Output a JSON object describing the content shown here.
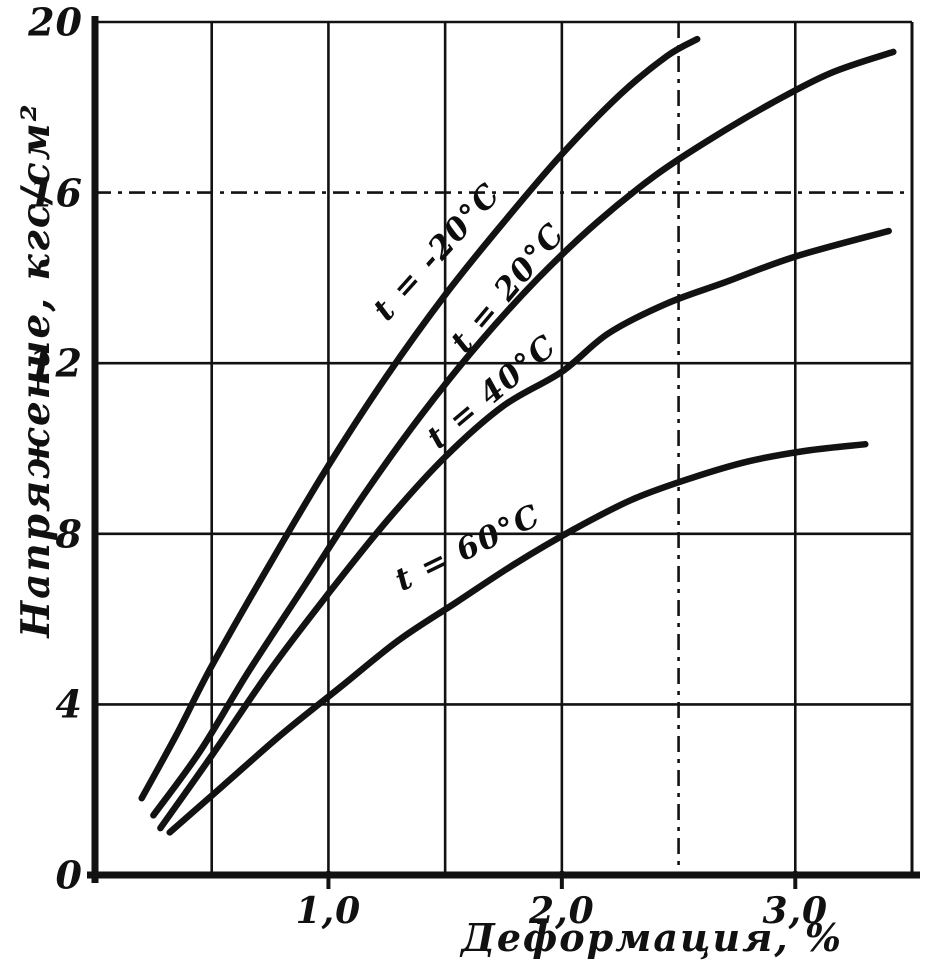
{
  "chart_data": {
    "type": "line",
    "title": "",
    "xlabel": "Деформация, %",
    "ylabel": "Напряжение, кгс/см²",
    "xlim": [
      0,
      3.5
    ],
    "ylim": [
      0,
      20
    ],
    "grid": true,
    "x_gridlines": [
      0.5,
      1.0,
      1.5,
      2.0,
      2.5,
      3.0
    ],
    "y_gridlines": [
      4,
      8,
      12,
      16,
      20
    ],
    "x_ticks": [
      {
        "value": 1.0,
        "label": "1,0"
      },
      {
        "value": 2.0,
        "label": "2,0"
      },
      {
        "value": 3.0,
        "label": "3,0"
      }
    ],
    "y_ticks": [
      {
        "value": 0,
        "label": "0"
      },
      {
        "value": 4,
        "label": "4"
      },
      {
        "value": 8,
        "label": "8"
      },
      {
        "value": 12,
        "label": "12"
      },
      {
        "value": 16,
        "label": "16"
      },
      {
        "value": 20,
        "label": "20"
      }
    ],
    "series": [
      {
        "name": "t = -20°C",
        "points": [
          [
            0.2,
            1.8
          ],
          [
            0.35,
            3.3
          ],
          [
            0.5,
            4.9
          ],
          [
            0.75,
            7.3
          ],
          [
            1.0,
            9.6
          ],
          [
            1.25,
            11.7
          ],
          [
            1.5,
            13.6
          ],
          [
            1.75,
            15.3
          ],
          [
            2.0,
            16.9
          ],
          [
            2.25,
            18.3
          ],
          [
            2.45,
            19.2
          ],
          [
            2.58,
            19.6
          ]
        ]
      },
      {
        "name": "t = 20°C",
        "points": [
          [
            0.25,
            1.4
          ],
          [
            0.45,
            2.9
          ],
          [
            0.65,
            4.7
          ],
          [
            0.9,
            6.8
          ],
          [
            1.15,
            8.9
          ],
          [
            1.4,
            10.8
          ],
          [
            1.65,
            12.5
          ],
          [
            1.9,
            14.0
          ],
          [
            2.15,
            15.3
          ],
          [
            2.4,
            16.4
          ],
          [
            2.65,
            17.3
          ],
          [
            2.9,
            18.1
          ],
          [
            3.15,
            18.8
          ],
          [
            3.42,
            19.3
          ]
        ]
      },
      {
        "name": "t = 40°C",
        "points": [
          [
            0.28,
            1.1
          ],
          [
            0.5,
            2.8
          ],
          [
            0.75,
            4.8
          ],
          [
            1.0,
            6.6
          ],
          [
            1.25,
            8.3
          ],
          [
            1.5,
            9.8
          ],
          [
            1.75,
            11.0
          ],
          [
            2.0,
            11.8
          ],
          [
            2.2,
            12.7
          ],
          [
            2.45,
            13.4
          ],
          [
            2.7,
            13.9
          ],
          [
            3.0,
            14.5
          ],
          [
            3.4,
            15.1
          ]
        ]
      },
      {
        "name": "t = 60°C",
        "points": [
          [
            0.32,
            1.0
          ],
          [
            0.55,
            2.1
          ],
          [
            0.8,
            3.3
          ],
          [
            1.05,
            4.4
          ],
          [
            1.3,
            5.5
          ],
          [
            1.55,
            6.4
          ],
          [
            1.8,
            7.3
          ],
          [
            2.05,
            8.1
          ],
          [
            2.3,
            8.8
          ],
          [
            2.55,
            9.3
          ],
          [
            2.8,
            9.7
          ],
          [
            3.05,
            9.95
          ],
          [
            3.3,
            10.1
          ]
        ]
      }
    ]
  }
}
